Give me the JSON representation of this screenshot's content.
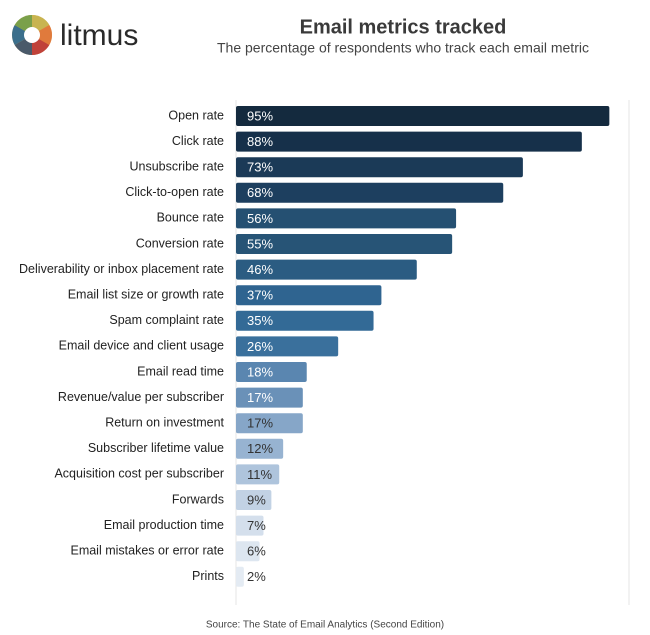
{
  "brand": "litmus",
  "chart_data": {
    "type": "bar",
    "orientation": "horizontal",
    "title": "Email metrics tracked",
    "subtitle": "The percentage of respondents who track each email metric",
    "categories": [
      "Open rate",
      "Click rate",
      "Unsubscribe rate",
      "Click-to-open rate",
      "Bounce rate",
      "Conversion rate",
      "Deliverability or inbox placement rate",
      "Email list size or growth rate",
      "Spam complaint rate",
      "Email device and client usage",
      "Email read time",
      "Revenue/value per subscriber",
      "Return on investment",
      "Subscriber lifetime value",
      "Acquisition cost per subscriber",
      "Forwards",
      "Email production time",
      "Email mistakes or error rate",
      "Prints"
    ],
    "values": [
      95,
      88,
      73,
      68,
      56,
      55,
      46,
      37,
      35,
      26,
      18,
      17,
      17,
      12,
      11,
      9,
      7,
      6,
      2
    ],
    "value_labels": [
      "95%",
      "88%",
      "73%",
      "68%",
      "56%",
      "55%",
      "46%",
      "37%",
      "35%",
      "26%",
      "18%",
      "17%",
      "17%",
      "12%",
      "11%",
      "9%",
      "7%",
      "6%",
      "2%"
    ],
    "colors": [
      "#142a3e",
      "#16304a",
      "#1b3a57",
      "#1d3f5f",
      "#255072",
      "#275476",
      "#2b5c82",
      "#2f6490",
      "#336a96",
      "#3a709c",
      "#5a86b0",
      "#6a91b8",
      "#86a6c8",
      "#97b3d1",
      "#aec4dc",
      "#c2d2e4",
      "#d4dfec",
      "#dde6f0",
      "#e4ebf3"
    ],
    "xlim": [
      0,
      100
    ],
    "source": "Source: The State of Email Analytics (Second Edition)"
  }
}
